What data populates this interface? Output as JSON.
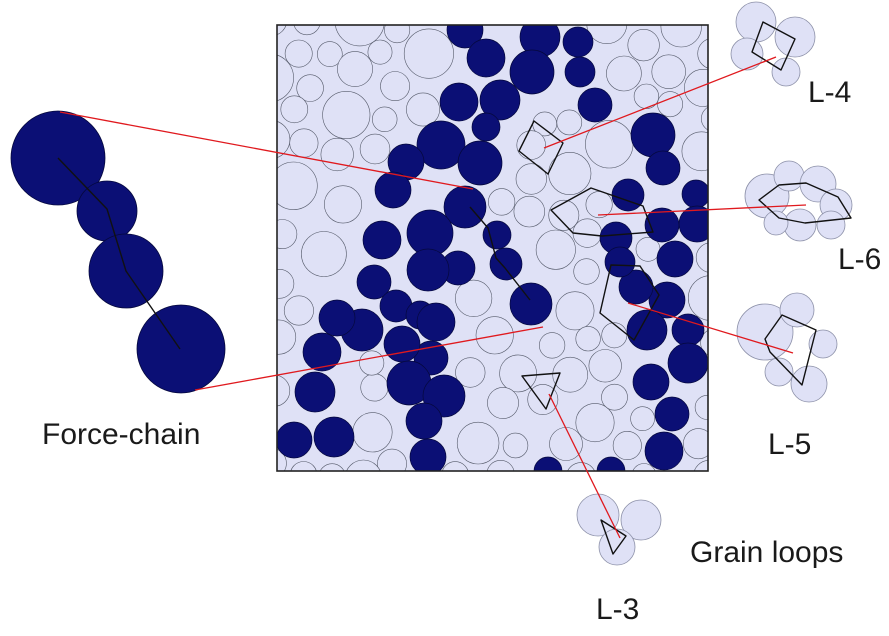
{
  "labels": {
    "force_chain": "Force-chain",
    "loop_4": "L-4",
    "loop_6": "L-6",
    "loop_5": "L-5",
    "loop_3": "L-3",
    "grain_loops": "Grain loops"
  },
  "colors": {
    "strong_grain": "#0b0f75",
    "weak_grain": "#dfe1f6",
    "grain_outline": "#555a6a",
    "connector": "#e0191e",
    "loop_outline": "#111111",
    "box_border": "#222222"
  }
}
